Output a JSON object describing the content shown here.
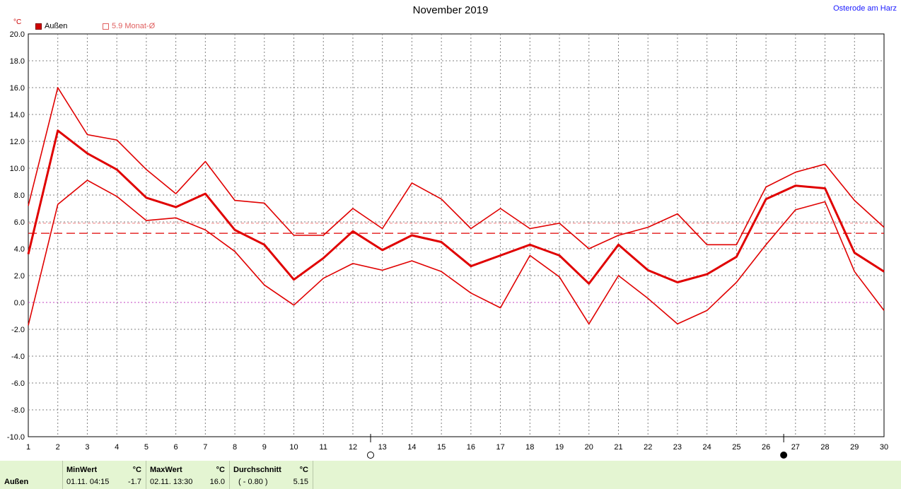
{
  "chart_data": {
    "type": "line",
    "title": "November 2019",
    "location": "Osterode am Harz",
    "ylabel": "°C",
    "ylim": [
      -10,
      20
    ],
    "yticks": [
      "20.0",
      "18.0",
      "16.0",
      "14.0",
      "12.0",
      "10.0",
      "8.0",
      "6.0",
      "4.0",
      "2.0",
      "0.0",
      "-2.0",
      "-4.0",
      "-6.0",
      "-8.0",
      "-10.0"
    ],
    "x": [
      1,
      2,
      3,
      4,
      5,
      6,
      7,
      8,
      9,
      10,
      11,
      12,
      13,
      14,
      15,
      16,
      17,
      18,
      19,
      20,
      21,
      22,
      23,
      24,
      25,
      26,
      27,
      28,
      29,
      30
    ],
    "grid": true,
    "legend": {
      "main_label": "Außen",
      "avg_label": "5.9 Monat-Ø",
      "avg_value": 5.9
    },
    "series": [
      {
        "role": "max",
        "color": "#e00000",
        "values": [
          7.2,
          16.0,
          12.5,
          12.1,
          9.9,
          8.1,
          10.5,
          7.6,
          7.4,
          5.0,
          5.0,
          7.0,
          5.5,
          8.9,
          7.7,
          5.5,
          7.0,
          5.5,
          5.9,
          4.0,
          5.0,
          5.6,
          6.6,
          4.3,
          4.3,
          8.6,
          9.7,
          10.3,
          7.6,
          5.6
        ]
      },
      {
        "role": "avg",
        "color": "#e00000",
        "values": [
          3.6,
          12.8,
          11.1,
          9.9,
          7.8,
          7.1,
          8.1,
          5.4,
          4.3,
          1.7,
          3.3,
          5.3,
          3.9,
          5.0,
          4.5,
          2.7,
          3.5,
          4.3,
          3.5,
          1.4,
          4.3,
          2.4,
          1.5,
          2.1,
          3.4,
          7.7,
          8.7,
          8.5,
          3.7,
          2.3
        ]
      },
      {
        "role": "min",
        "color": "#e00000",
        "values": [
          -1.7,
          7.3,
          9.1,
          7.9,
          6.1,
          6.3,
          5.4,
          3.8,
          1.3,
          -0.2,
          1.8,
          2.9,
          2.4,
          3.1,
          2.3,
          0.7,
          -0.4,
          3.5,
          1.9,
          -1.6,
          2.0,
          0.3,
          -1.6,
          -0.6,
          1.5,
          4.3,
          6.9,
          7.5,
          2.3,
          -0.6
        ]
      }
    ],
    "ref_line": 5.15,
    "moon_markers": [
      {
        "day": 12.6,
        "phase": "full-moon"
      },
      {
        "day": 26.6,
        "phase": "new-moon"
      }
    ]
  },
  "footer": {
    "row_label": "Außen",
    "min": {
      "header": "MinWert",
      "unit": "°C",
      "date": "01.11.  04:15",
      "value": "-1.7"
    },
    "max": {
      "header": "MaxWert",
      "unit": "°C",
      "date": "02.11.  13:30",
      "value": "16.0"
    },
    "avg": {
      "header": "Durchschnitt",
      "unit": "°C",
      "extra": "( - 0.80 )",
      "value": "5.15"
    }
  }
}
